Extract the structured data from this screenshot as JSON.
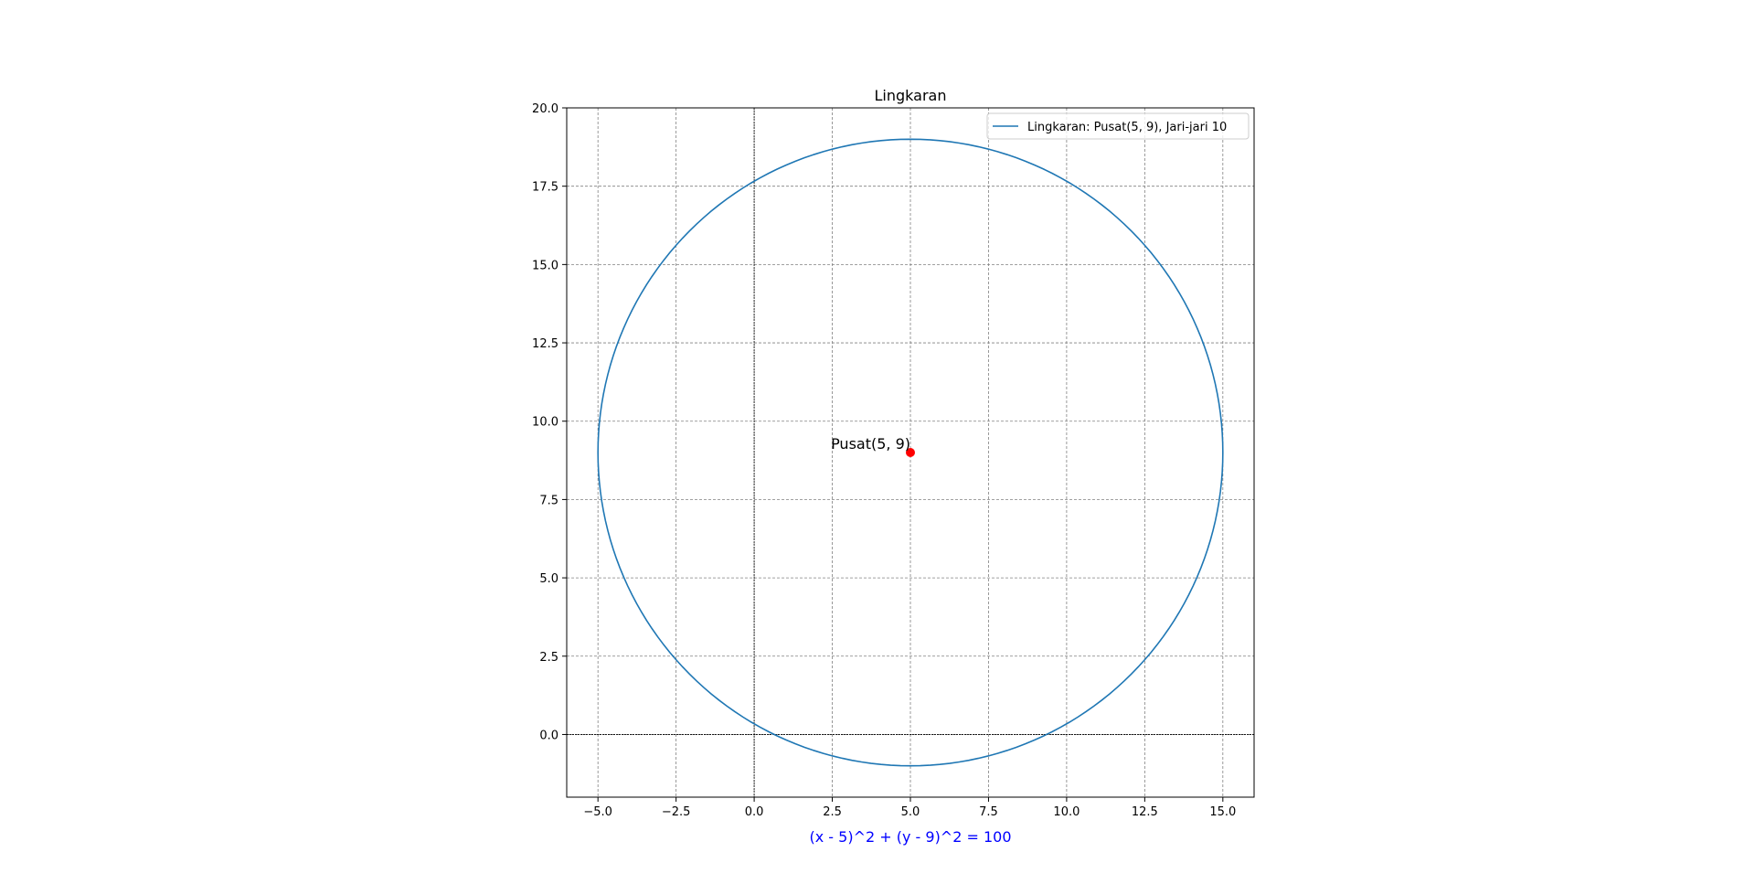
{
  "chart_data": {
    "type": "line",
    "title": "Lingkaran",
    "xlabel": "",
    "ylabel": "",
    "xlim": [
      -6,
      16
    ],
    "ylim": [
      -2,
      20
    ],
    "xticks": [
      -5,
      -2.5,
      0,
      2.5,
      5,
      7.5,
      10,
      12.5,
      15
    ],
    "xtick_labels": [
      "−5.0",
      "−2.5",
      "0.0",
      "2.5",
      "5.0",
      "7.5",
      "10.0",
      "12.5",
      "15.0"
    ],
    "yticks": [
      0,
      2.5,
      5,
      7.5,
      10,
      12.5,
      15,
      17.5,
      20
    ],
    "ytick_labels": [
      "0.0",
      "2.5",
      "5.0",
      "7.5",
      "10.0",
      "12.5",
      "15.0",
      "17.5",
      "20.0"
    ],
    "grid": true,
    "legend_position": "top-right",
    "series": [
      {
        "name": "Lingkaran: Pusat(5, 9), Jari-jari 10",
        "kind": "circle",
        "center": [
          5,
          9
        ],
        "radius": 10,
        "color": "#1f77b4"
      }
    ],
    "points": [
      {
        "name": "center",
        "x": 5,
        "y": 9,
        "color": "#ff0000"
      }
    ],
    "annotations": [
      {
        "text": "Pusat(5, 9)",
        "x": 5,
        "y": 9
      }
    ],
    "equation": {
      "text": "(x - 5)^2 + (y - 9)^2 = 100",
      "color": "#0000ff"
    },
    "reference_lines": {
      "x0": 0,
      "y0": 0
    }
  }
}
